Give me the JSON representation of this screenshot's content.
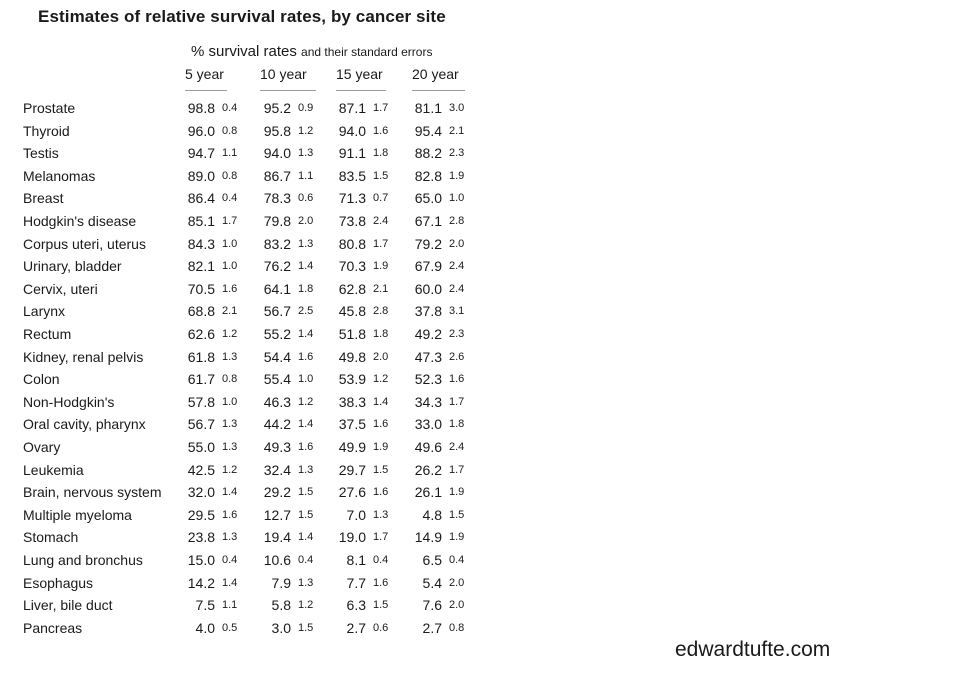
{
  "chart_data": {
    "type": "table",
    "title": "Estimates of relative survival rates, by cancer site",
    "header_main": "% survival rates",
    "header_sub": "and their standard errors",
    "columns": [
      "5 year",
      "10 year",
      "15 year",
      "20 year"
    ],
    "rows": [
      {
        "site": "Prostate",
        "rates": [
          "98.8",
          "95.2",
          "87.1",
          "81.1"
        ],
        "se": [
          "0.4",
          "0.9",
          "1.7",
          "3.0"
        ]
      },
      {
        "site": "Thyroid",
        "rates": [
          "96.0",
          "95.8",
          "94.0",
          "95.4"
        ],
        "se": [
          "0.8",
          "1.2",
          "1.6",
          "2.1"
        ]
      },
      {
        "site": "Testis",
        "rates": [
          "94.7",
          "94.0",
          "91.1",
          "88.2"
        ],
        "se": [
          "1.1",
          "1.3",
          "1.8",
          "2.3"
        ]
      },
      {
        "site": "Melanomas",
        "rates": [
          "89.0",
          "86.7",
          "83.5",
          "82.8"
        ],
        "se": [
          "0.8",
          "1.1",
          "1.5",
          "1.9"
        ]
      },
      {
        "site": "Breast",
        "rates": [
          "86.4",
          "78.3",
          "71.3",
          "65.0"
        ],
        "se": [
          "0.4",
          "0.6",
          "0.7",
          "1.0"
        ]
      },
      {
        "site": "Hodgkin's disease",
        "rates": [
          "85.1",
          "79.8",
          "73.8",
          "67.1"
        ],
        "se": [
          "1.7",
          "2.0",
          "2.4",
          "2.8"
        ]
      },
      {
        "site": "Corpus uteri, uterus",
        "rates": [
          "84.3",
          "83.2",
          "80.8",
          "79.2"
        ],
        "se": [
          "1.0",
          "1.3",
          "1.7",
          "2.0"
        ]
      },
      {
        "site": "Urinary, bladder",
        "rates": [
          "82.1",
          "76.2",
          "70.3",
          "67.9"
        ],
        "se": [
          "1.0",
          "1.4",
          "1.9",
          "2.4"
        ]
      },
      {
        "site": "Cervix, uteri",
        "rates": [
          "70.5",
          "64.1",
          "62.8",
          "60.0"
        ],
        "se": [
          "1.6",
          "1.8",
          "2.1",
          "2.4"
        ]
      },
      {
        "site": "Larynx",
        "rates": [
          "68.8",
          "56.7",
          "45.8",
          "37.8"
        ],
        "se": [
          "2.1",
          "2.5",
          "2.8",
          "3.1"
        ]
      },
      {
        "site": "Rectum",
        "rates": [
          "62.6",
          "55.2",
          "51.8",
          "49.2"
        ],
        "se": [
          "1.2",
          "1.4",
          "1.8",
          "2.3"
        ]
      },
      {
        "site": "Kidney, renal pelvis",
        "rates": [
          "61.8",
          "54.4",
          "49.8",
          "47.3"
        ],
        "se": [
          "1.3",
          "1.6",
          "2.0",
          "2.6"
        ]
      },
      {
        "site": "Colon",
        "rates": [
          "61.7",
          "55.4",
          "53.9",
          "52.3"
        ],
        "se": [
          "0.8",
          "1.0",
          "1.2",
          "1.6"
        ]
      },
      {
        "site": "Non-Hodgkin's",
        "rates": [
          "57.8",
          "46.3",
          "38.3",
          "34.3"
        ],
        "se": [
          "1.0",
          "1.2",
          "1.4",
          "1.7"
        ]
      },
      {
        "site": "Oral cavity, pharynx",
        "rates": [
          "56.7",
          "44.2",
          "37.5",
          "33.0"
        ],
        "se": [
          "1.3",
          "1.4",
          "1.6",
          "1.8"
        ]
      },
      {
        "site": "Ovary",
        "rates": [
          "55.0",
          "49.3",
          "49.9",
          "49.6"
        ],
        "se": [
          "1.3",
          "1.6",
          "1.9",
          "2.4"
        ]
      },
      {
        "site": "Leukemia",
        "rates": [
          "42.5",
          "32.4",
          "29.7",
          "26.2"
        ],
        "se": [
          "1.2",
          "1.3",
          "1.5",
          "1.7"
        ]
      },
      {
        "site": "Brain, nervous system",
        "rates": [
          "32.0",
          "29.2",
          "27.6",
          "26.1"
        ],
        "se": [
          "1.4",
          "1.5",
          "1.6",
          "1.9"
        ]
      },
      {
        "site": "Multiple myeloma",
        "rates": [
          "29.5",
          "12.7",
          "7.0",
          "4.8"
        ],
        "se": [
          "1.6",
          "1.5",
          "1.3",
          "1.5"
        ]
      },
      {
        "site": "Stomach",
        "rates": [
          "23.8",
          "19.4",
          "19.0",
          "14.9"
        ],
        "se": [
          "1.3",
          "1.4",
          "1.7",
          "1.9"
        ]
      },
      {
        "site": "Lung and bronchus",
        "rates": [
          "15.0",
          "10.6",
          "8.1",
          "6.5"
        ],
        "se": [
          "0.4",
          "0.4",
          "0.4",
          "0.4"
        ]
      },
      {
        "site": "Esophagus",
        "rates": [
          "14.2",
          "7.9",
          "7.7",
          "5.4"
        ],
        "se": [
          "1.4",
          "1.3",
          "1.6",
          "2.0"
        ]
      },
      {
        "site": "Liver, bile duct",
        "rates": [
          "7.5",
          "5.8",
          "6.3",
          "7.6"
        ],
        "se": [
          "1.1",
          "1.2",
          "1.5",
          "2.0"
        ]
      },
      {
        "site": "Pancreas",
        "rates": [
          "4.0",
          "3.0",
          "2.7",
          "2.7"
        ],
        "se": [
          "0.5",
          "1.5",
          "0.6",
          "0.8"
        ]
      }
    ]
  },
  "credit": "edwardtufte.com"
}
